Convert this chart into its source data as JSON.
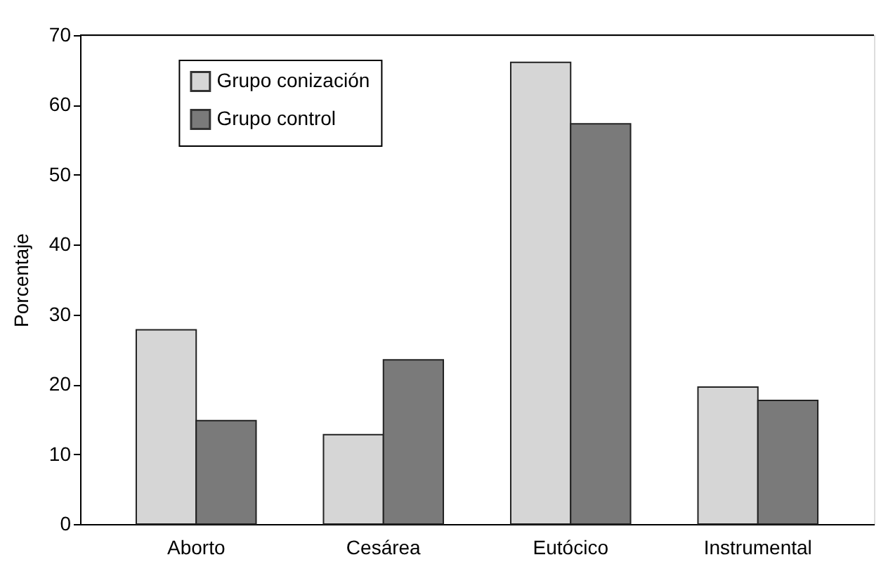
{
  "chart_data": {
    "type": "bar",
    "ylabel": "Porcentaje",
    "categories": [
      "Aborto",
      "Cesárea",
      "Eutócico",
      "Instrumental"
    ],
    "series": [
      {
        "name": "Grupo conización",
        "color": "#d6d6d6",
        "values": [
          27.8,
          12.8,
          66.1,
          19.6
        ]
      },
      {
        "name": "Grupo control",
        "color": "#7a7a7a",
        "values": [
          14.8,
          23.5,
          57.3,
          17.7
        ]
      }
    ],
    "ylim": [
      0,
      70
    ],
    "yticks": [
      0,
      10,
      20,
      30,
      40,
      50,
      60,
      70
    ],
    "grid": false,
    "legend": "top left"
  }
}
